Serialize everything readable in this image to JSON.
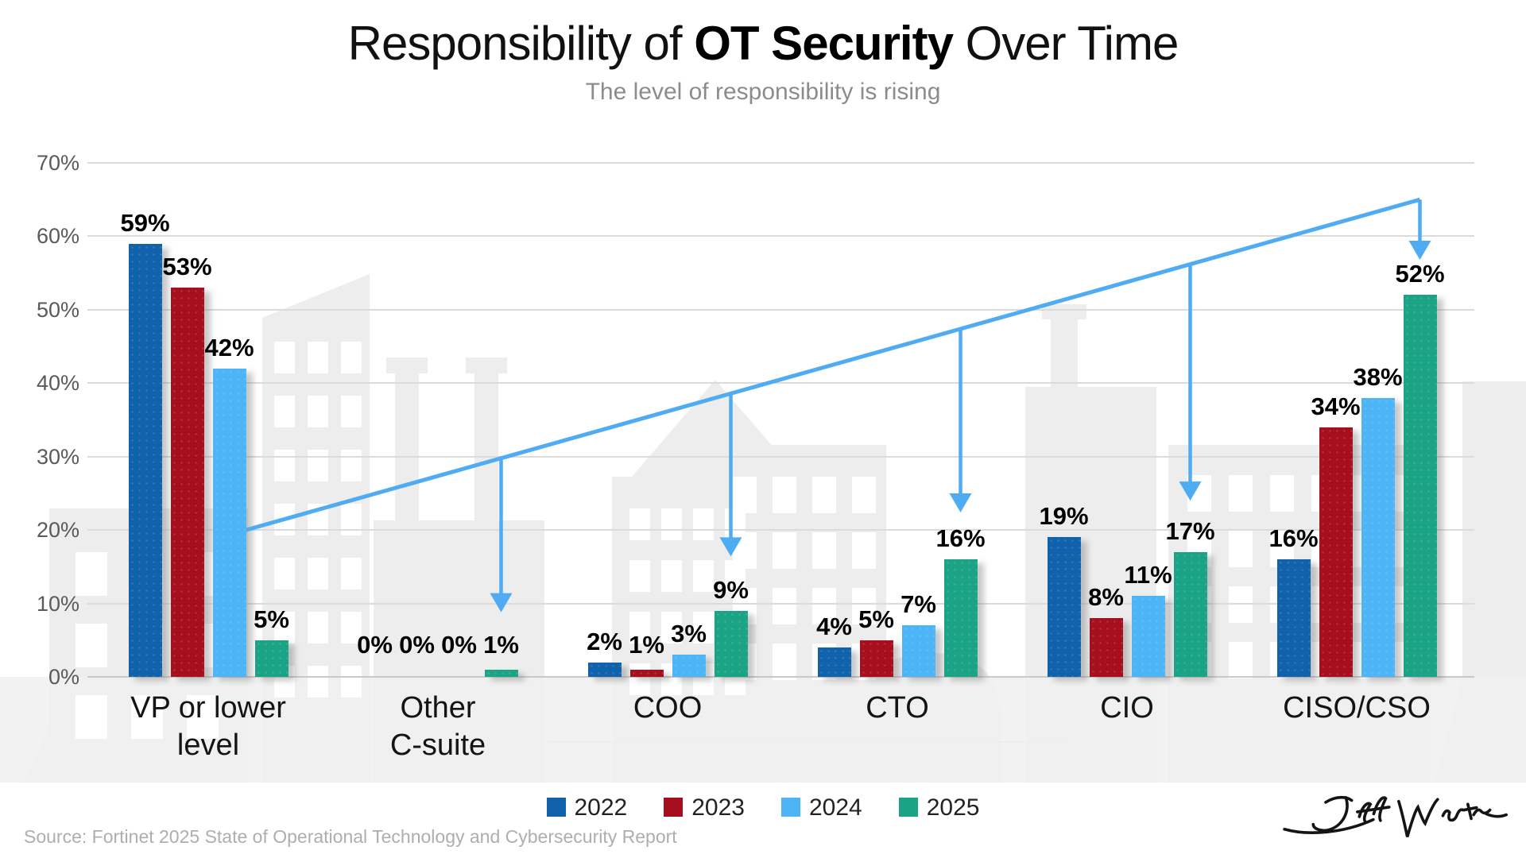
{
  "header": {
    "title_pre": "Responsibility of ",
    "title_bold": "OT Security",
    "title_post": " Over Time",
    "subtitle": "The level of responsibility is rising"
  },
  "chart_data": {
    "type": "bar",
    "title": "Responsibility of OT Security Over Time",
    "subtitle": "The level of responsibility is rising",
    "categories": [
      "VP or lower\nlevel",
      "Other\nC-suite",
      "COO",
      "CTO",
      "CIO",
      "CISO/CSO"
    ],
    "series": [
      {
        "name": "2022",
        "color": "#1063AA",
        "values": [
          59,
          0,
          2,
          4,
          19,
          16
        ]
      },
      {
        "name": "2023",
        "color": "#A50F1E",
        "values": [
          53,
          0,
          1,
          5,
          8,
          34
        ]
      },
      {
        "name": "2024",
        "color": "#4DB5F5",
        "values": [
          42,
          0,
          3,
          7,
          11,
          38
        ]
      },
      {
        "name": "2025",
        "color": "#1BA385",
        "values": [
          5,
          1,
          9,
          16,
          17,
          52
        ]
      }
    ],
    "value_suffix": "%",
    "y_ticks": [
      "70%",
      "60%",
      "50%",
      "40%",
      "30%",
      "20%",
      "10%",
      "0%"
    ],
    "ylim": [
      0,
      70
    ],
    "grid": true,
    "legend_position": "bottom",
    "annotation_trend": {
      "color": "#4FACF2",
      "start": {
        "group": 0,
        "pct": 20
      },
      "end": {
        "group": 5,
        "pct": 65
      },
      "drops": [
        {
          "group": 1,
          "tip_pct": 8.8
        },
        {
          "group": 2,
          "tip_pct": 16.4
        },
        {
          "group": 3,
          "tip_pct": 22.4
        },
        {
          "group": 4,
          "tip_pct": 24
        },
        {
          "group": 5,
          "tip_pct": 56.8
        }
      ]
    }
  },
  "footer": {
    "source": "Source: Fortinet 2025 State of Operational Technology and Cybersecurity Report",
    "signature": "Jeff Winter"
  }
}
